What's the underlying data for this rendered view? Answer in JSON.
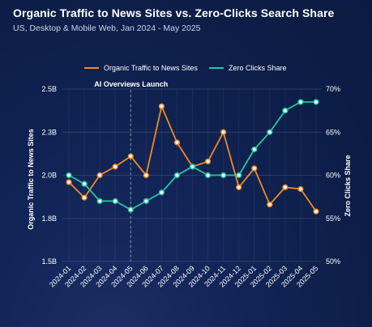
{
  "title": "Organic Traffic to News Sites vs. Zero-Clicks Search Share",
  "subtitle": "US, Desktop & Mobile Web, Jan 2024 - May 2025",
  "chart_data": {
    "type": "line",
    "x": [
      "2024-01",
      "2024-02",
      "2024-03",
      "2024-04",
      "2024-05",
      "2024-06",
      "2024-07",
      "2024-08",
      "2024-09",
      "2024-10",
      "2024-11",
      "2024-12",
      "2025-01",
      "2025-02",
      "2025-03",
      "2025-04",
      "2025-05"
    ],
    "series": [
      {
        "name": "Organic Traffic to News Sites",
        "axis": "left",
        "color": "#f08a24",
        "values": [
          1.96,
          1.87,
          2.0,
          2.05,
          2.11,
          2.0,
          2.4,
          2.19,
          2.05,
          2.08,
          2.25,
          1.93,
          2.04,
          1.83,
          1.93,
          1.92,
          1.79
        ]
      },
      {
        "name": "Zero Clicks Share",
        "axis": "right",
        "color": "#22c6a3",
        "values": [
          60,
          59,
          57,
          57,
          56,
          57,
          58,
          60,
          61,
          60,
          60,
          60,
          63,
          65,
          67.5,
          68.5,
          68.5
        ]
      }
    ],
    "y_left": {
      "label": "Organic Traffic to News Sites",
      "ticks": [
        "1.5B",
        "1.8B",
        "2.0B",
        "2.3B",
        "2.5B"
      ],
      "range": [
        1.5,
        2.5
      ]
    },
    "y_right": {
      "label": "Zero Clicks Share",
      "ticks": [
        "50%",
        "55%",
        "60%",
        "65%",
        "70%"
      ],
      "range": [
        50,
        70
      ]
    },
    "legend_position": "top",
    "annotation": {
      "label": "AI Overviews Launch",
      "x": "2024-05"
    },
    "grid": true
  }
}
